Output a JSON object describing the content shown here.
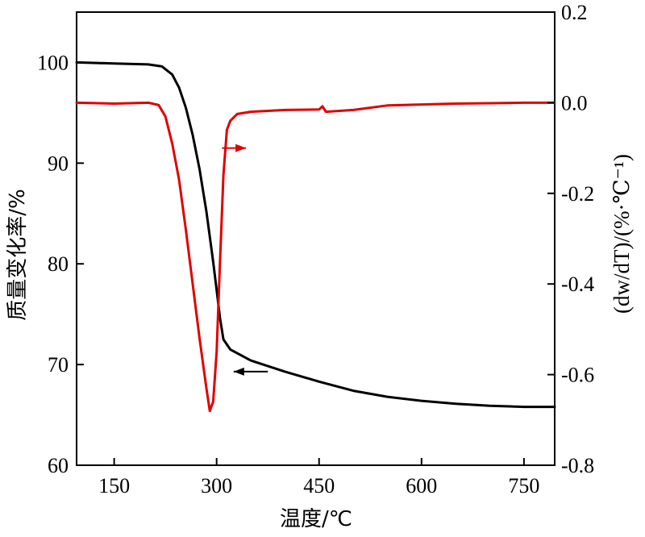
{
  "chart_data": {
    "type": "line",
    "xlabel": "温度/℃",
    "ylabel_left": "质量变化率/%",
    "ylabel_right": "(dw/dT)/(%·℃⁻¹)",
    "xlim": [
      95,
      795
    ],
    "ylim_left": [
      60,
      105
    ],
    "ylim_right": [
      -0.8,
      0.2
    ],
    "x_ticks": [
      150,
      300,
      450,
      600,
      750
    ],
    "x_tick_labels": [
      "150",
      "300",
      "450",
      "600",
      "750"
    ],
    "y_left_ticks": [
      60,
      70,
      80,
      90,
      100
    ],
    "y_left_tick_labels": [
      "60",
      "70",
      "80",
      "90",
      "100"
    ],
    "y_right_ticks": [
      -0.8,
      -0.6,
      -0.4,
      -0.2,
      0.0,
      0.2
    ],
    "y_right_tick_labels": [
      "-0.8",
      "-0.6",
      "-0.4",
      "-0.2",
      "0.0",
      "0.2"
    ],
    "grid": false,
    "series": [
      {
        "axis": "left",
        "color": "#000000",
        "x": [
          95,
          150,
          200,
          220,
          235,
          245,
          255,
          265,
          275,
          285,
          295,
          300,
          305,
          310,
          320,
          350,
          400,
          450,
          500,
          550,
          600,
          650,
          700,
          750,
          795
        ],
        "y": [
          100,
          99.9,
          99.8,
          99.6,
          98.8,
          97.5,
          95.5,
          92.8,
          89.4,
          85.2,
          80.2,
          77.4,
          74.6,
          72.5,
          71.5,
          70.4,
          69.3,
          68.3,
          67.4,
          66.8,
          66.4,
          66.1,
          65.9,
          65.8,
          65.8
        ]
      },
      {
        "axis": "right",
        "color": "#e00000",
        "x": [
          95,
          150,
          200,
          215,
          225,
          235,
          245,
          255,
          265,
          275,
          285,
          290,
          295,
          300,
          305,
          310,
          315,
          320,
          330,
          350,
          400,
          450,
          455,
          460,
          500,
          550,
          600,
          650,
          700,
          750,
          795
        ],
        "y": [
          0.0,
          -0.002,
          0.0,
          -0.005,
          -0.03,
          -0.09,
          -0.17,
          -0.28,
          -0.4,
          -0.52,
          -0.63,
          -0.68,
          -0.66,
          -0.55,
          -0.35,
          -0.16,
          -0.06,
          -0.04,
          -0.025,
          -0.02,
          -0.016,
          -0.015,
          -0.008,
          -0.02,
          -0.016,
          -0.006,
          -0.004,
          -0.002,
          -0.001,
          0.0,
          0.0
        ]
      }
    ],
    "annotations": [
      {
        "type": "arrow",
        "color": "#e00000",
        "direction": "right",
        "x_from": 308,
        "x_to": 343,
        "y_axis": "right",
        "y": -0.1
      },
      {
        "type": "arrow",
        "color": "#000000",
        "direction": "left",
        "x_from": 375,
        "x_to": 325,
        "y_axis": "left",
        "y": 69.3
      }
    ]
  }
}
